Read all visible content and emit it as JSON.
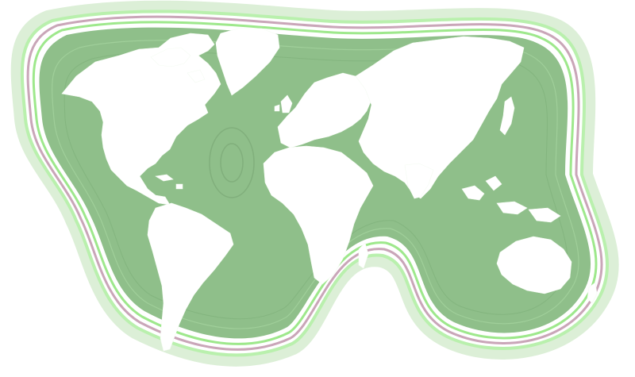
{
  "map": {
    "style": "world-map-silhouette",
    "colors": {
      "background": "#ffffff",
      "ocean": "#8fbf8a",
      "ocean_light": "#a7d0a2",
      "contour_line": "#6fb56a",
      "contour_highlight": "#b8f5a8",
      "contour_alt": "#c9a6b8",
      "land": "#ffffff"
    },
    "continents": [
      "north-america",
      "greenland",
      "south-america",
      "europe",
      "africa",
      "asia",
      "australia"
    ]
  }
}
